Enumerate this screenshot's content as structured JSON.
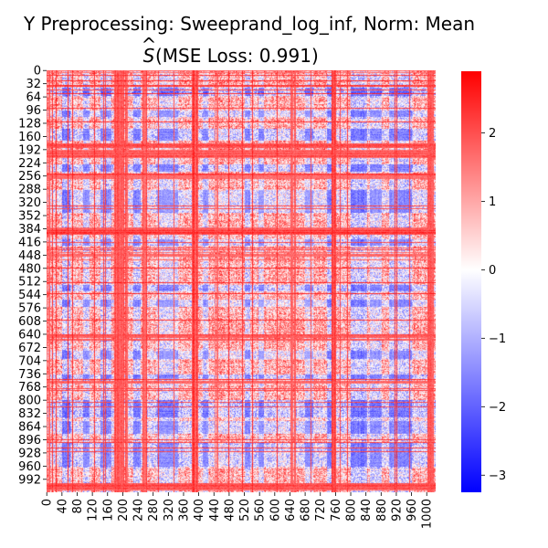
{
  "chart_data": {
    "type": "heatmap",
    "title_line1": "Y Preprocessing: Sweeprand_log_inf, Norm: Mean",
    "title_line2_prefix": "S",
    "title_line2_hat": "^",
    "title_line2_suffix": " (MSE Loss: 0.991)",
    "matrix_size": 1024,
    "grid": false,
    "colormap": "bwr",
    "colors": {
      "low": "#0000ff",
      "mid": "#ffffff",
      "high": "#ff0000"
    },
    "value_range": [
      -3.25,
      2.9
    ],
    "y_ticks": [
      "0",
      "32",
      "64",
      "96",
      "128",
      "160",
      "192",
      "224",
      "256",
      "288",
      "320",
      "352",
      "384",
      "416",
      "448",
      "480",
      "512",
      "544",
      "576",
      "608",
      "640",
      "672",
      "704",
      "736",
      "768",
      "800",
      "832",
      "864",
      "896",
      "928",
      "960",
      "992"
    ],
    "x_ticks": [
      "0",
      "40",
      "80",
      "120",
      "160",
      "200",
      "240",
      "280",
      "320",
      "360",
      "400",
      "440",
      "480",
      "520",
      "560",
      "600",
      "640",
      "680",
      "720",
      "760",
      "800",
      "840",
      "880",
      "920",
      "960",
      "1000"
    ],
    "colorbar": {
      "ticks": [
        {
          "value": 2,
          "label": "2"
        },
        {
          "value": 1,
          "label": "1"
        },
        {
          "value": 0,
          "label": "0"
        },
        {
          "value": -1,
          "label": "−1"
        },
        {
          "value": -2,
          "label": "−2"
        },
        {
          "value": -3,
          "label": "−3"
        }
      ]
    },
    "stripe_bands": [
      {
        "range": [
          0,
          8
        ],
        "value": 2.2
      },
      {
        "range": [
          40,
          62
        ],
        "value": -2.6
      },
      {
        "range": [
          96,
          112
        ],
        "value": -2.0
      },
      {
        "range": [
          140,
          170
        ],
        "value": -2.4
      },
      {
        "range": [
          176,
          200
        ],
        "value": 2.5
      },
      {
        "range": [
          200,
          212
        ],
        "value": 2.4
      },
      {
        "range": [
          228,
          246
        ],
        "value": -2.2
      },
      {
        "range": [
          252,
          262
        ],
        "value": 2.6
      },
      {
        "range": [
          290,
          345
        ],
        "value": -1.8
      },
      {
        "range": [
          380,
          398
        ],
        "value": 2.8
      },
      {
        "range": [
          410,
          424
        ],
        "value": -2.0
      },
      {
        "range": [
          440,
          460
        ],
        "value": 2.0
      },
      {
        "range": [
          520,
          535
        ],
        "value": -2.3
      },
      {
        "range": [
          556,
          572
        ],
        "value": -1.8
      },
      {
        "range": [
          640,
          656
        ],
        "value": 2.4
      },
      {
        "range": [
          680,
          700
        ],
        "value": -1.6
      },
      {
        "range": [
          736,
          750
        ],
        "value": -2.3
      },
      {
        "range": [
          752,
          760
        ],
        "value": 2.5
      },
      {
        "range": [
          800,
          842
        ],
        "value": -2.5
      },
      {
        "range": [
          850,
          880
        ],
        "value": -2.0
      },
      {
        "range": [
          900,
          960
        ],
        "value": -2.2
      },
      {
        "range": [
          1000,
          1018
        ],
        "value": 2.6
      }
    ]
  }
}
